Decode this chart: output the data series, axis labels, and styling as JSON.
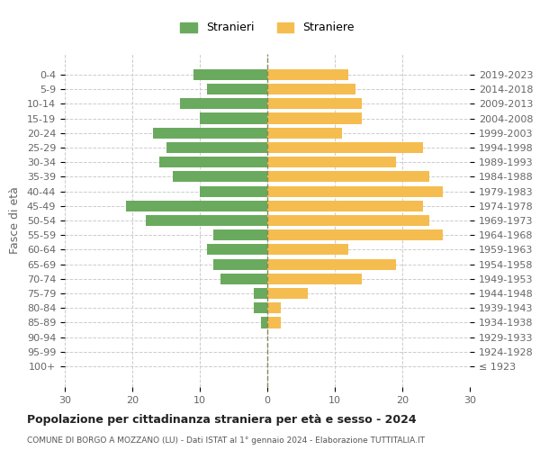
{
  "age_groups": [
    "100+",
    "95-99",
    "90-94",
    "85-89",
    "80-84",
    "75-79",
    "70-74",
    "65-69",
    "60-64",
    "55-59",
    "50-54",
    "45-49",
    "40-44",
    "35-39",
    "30-34",
    "25-29",
    "20-24",
    "15-19",
    "10-14",
    "5-9",
    "0-4"
  ],
  "birth_years": [
    "≤ 1923",
    "1924-1928",
    "1929-1933",
    "1934-1938",
    "1939-1943",
    "1944-1948",
    "1949-1953",
    "1954-1958",
    "1959-1963",
    "1964-1968",
    "1969-1973",
    "1974-1978",
    "1979-1983",
    "1984-1988",
    "1989-1993",
    "1994-1998",
    "1999-2003",
    "2004-2008",
    "2009-2013",
    "2014-2018",
    "2019-2023"
  ],
  "males": [
    0,
    0,
    0,
    1,
    2,
    2,
    7,
    8,
    9,
    8,
    18,
    21,
    10,
    14,
    16,
    15,
    17,
    10,
    13,
    9,
    11
  ],
  "females": [
    0,
    0,
    0,
    2,
    2,
    6,
    14,
    19,
    12,
    26,
    24,
    23,
    26,
    24,
    19,
    23,
    11,
    14,
    14,
    13,
    12
  ],
  "male_color": "#6aaa5e",
  "female_color": "#f5bd4f",
  "background_color": "#ffffff",
  "grid_color": "#cccccc",
  "title": "Popolazione per cittadinanza straniera per età e sesso - 2024",
  "subtitle": "COMUNE DI BORGO A MOZZANO (LU) - Dati ISTAT al 1° gennaio 2024 - Elaborazione TUTTITALIA.IT",
  "ylabel_left": "Fasce di età",
  "legend_male": "Stranieri",
  "legend_female": "Straniere",
  "xlim": 30,
  "dashed_line_color": "#888855"
}
